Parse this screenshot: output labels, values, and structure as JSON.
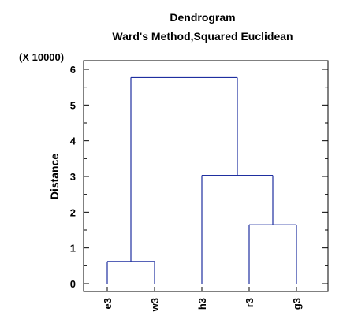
{
  "chart_data": {
    "type": "dendrogram",
    "title": "Dendrogram",
    "subtitle": "Ward's Method,Squared Euclidean",
    "ylabel": "Distance",
    "y_scale_note": "(X 10000)",
    "ylim": [
      0,
      6
    ],
    "y_ticks": [
      "0",
      "1",
      "2",
      "3",
      "4",
      "5",
      "6"
    ],
    "leaves": [
      "e3",
      "w3",
      "h3",
      "r3",
      "g3"
    ],
    "merges": [
      {
        "left": "e3",
        "right": "w3",
        "height": 0.62
      },
      {
        "left": "r3",
        "right": "g3",
        "height": 1.65
      },
      {
        "left": "h3",
        "right": "r3+g3",
        "height": 3.03
      },
      {
        "left": "e3+w3",
        "right": "h3+r3+g3",
        "height": 5.77
      }
    ],
    "grid": false,
    "line_color": "#1f2fa0",
    "axis_color": "#000000"
  }
}
